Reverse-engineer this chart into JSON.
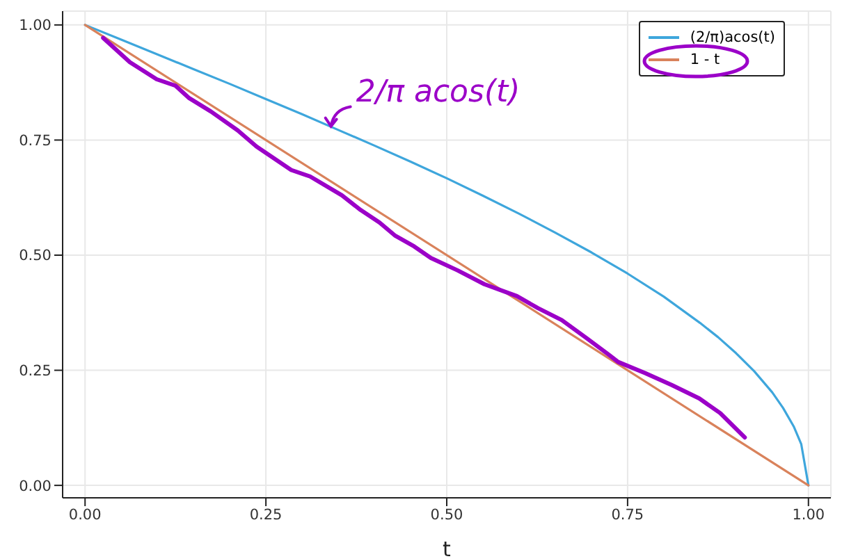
{
  "chart_data": {
    "type": "line",
    "xlabel": "t",
    "xlim": [
      -0.031,
      1.031
    ],
    "ylim": [
      -0.027,
      1.03
    ],
    "xticks": [
      {
        "value": 0,
        "label": "0.00"
      },
      {
        "value": 0.25,
        "label": "0.25"
      },
      {
        "value": 0.5,
        "label": "0.50"
      },
      {
        "value": 0.75,
        "label": "0.75"
      },
      {
        "value": 1,
        "label": "1.00"
      }
    ],
    "yticks": [
      {
        "value": 0,
        "label": "0.00"
      },
      {
        "value": 0.25,
        "label": "0.25"
      },
      {
        "value": 0.5,
        "label": "0.50"
      },
      {
        "value": 0.75,
        "label": "0.75"
      },
      {
        "value": 1,
        "label": "1.00"
      }
    ],
    "grid": true,
    "legend": "top right",
    "marker": "none",
    "line_style": "solid",
    "series": [
      {
        "name": "(2/π)acos(t)",
        "color": "#3ea6dc",
        "x": [
          0,
          0.05,
          0.1,
          0.15,
          0.2,
          0.25,
          0.3,
          0.35,
          0.4,
          0.45,
          0.5,
          0.55,
          0.6,
          0.65,
          0.7,
          0.75,
          0.8,
          0.85,
          0.875,
          0.9,
          0.925,
          0.95,
          0.965,
          0.98,
          0.99,
          1
        ],
        "values": [
          1,
          0.968,
          0.936,
          0.904,
          0.872,
          0.839,
          0.806,
          0.772,
          0.738,
          0.703,
          0.667,
          0.629,
          0.59,
          0.549,
          0.506,
          0.46,
          0.41,
          0.353,
          0.322,
          0.287,
          0.248,
          0.202,
          0.168,
          0.127,
          0.09,
          0
        ]
      },
      {
        "name": "1 - t",
        "color": "#d9825b",
        "x": [
          0,
          1
        ],
        "values": [
          1,
          0
        ]
      },
      {
        "color": "#9b00c8",
        "x": [
          0.025,
          0.062,
          0.099,
          0.125,
          0.144,
          0.174,
          0.211,
          0.237,
          0.285,
          0.311,
          0.355,
          0.381,
          0.407,
          0.429,
          0.455,
          0.478,
          0.515,
          0.552,
          0.597,
          0.626,
          0.659,
          0.693,
          0.723,
          0.737,
          0.774,
          0.811,
          0.849,
          0.878,
          0.912
        ],
        "values": [
          0.972,
          0.919,
          0.882,
          0.868,
          0.841,
          0.812,
          0.771,
          0.736,
          0.685,
          0.671,
          0.63,
          0.598,
          0.571,
          0.542,
          0.519,
          0.494,
          0.467,
          0.437,
          0.411,
          0.385,
          0.359,
          0.32,
          0.285,
          0.268,
          0.244,
          0.218,
          0.189,
          0.157,
          0.104
        ]
      }
    ],
    "annotations": [
      {
        "text": "2/π acos(t)",
        "x": 0.34,
        "y": 0.78
      }
    ]
  }
}
